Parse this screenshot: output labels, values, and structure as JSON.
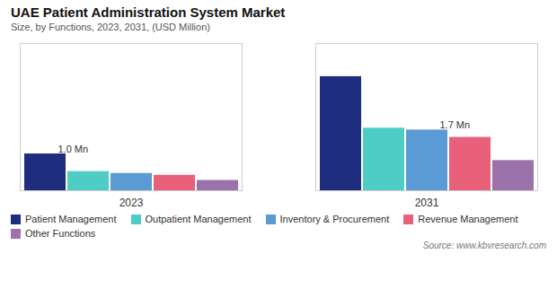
{
  "chart_data": {
    "type": "bar",
    "title": "UAE Patient Administration  System Market",
    "subtitle": "Size, by Functions, 2023, 2031, (USD Million)",
    "categories": [
      "2023",
      "2031"
    ],
    "series": [
      {
        "name": "Patient Management",
        "color": "#1e2d7d",
        "values": [
          1.0,
          3.1
        ]
      },
      {
        "name": "Outpatient Management",
        "color": "#4ecdc4",
        "values": [
          0.52,
          1.7
        ]
      },
      {
        "name": "Inventory & Procurement",
        "color": "#5b9bd5",
        "values": [
          0.47,
          1.65
        ]
      },
      {
        "name": "Revenue Management",
        "color": "#e9607a",
        "values": [
          0.42,
          1.45
        ]
      },
      {
        "name": "Other Functions",
        "color": "#9b72aa",
        "values": [
          0.28,
          0.82
        ]
      }
    ],
    "annotations": [
      {
        "text": "1.0 Mn",
        "category": "2023",
        "series": "Patient Management"
      },
      {
        "text": "1.7 Mn",
        "category": "2031",
        "series": "Inventory & Procurement"
      }
    ],
    "source": "Source: www.kbvresearch.com",
    "ylim": [
      0,
      4.0
    ],
    "tick_labels": "x",
    "grid": false,
    "legend": "bottom"
  }
}
